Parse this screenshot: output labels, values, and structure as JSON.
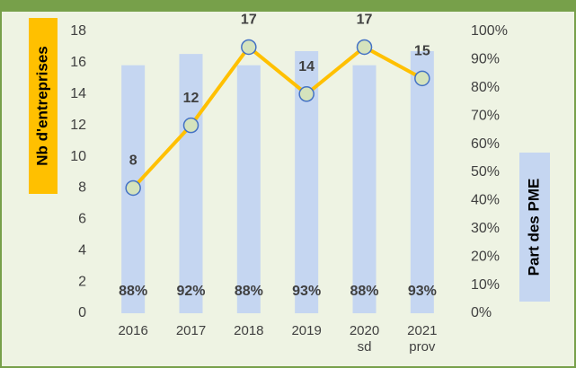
{
  "chart_data": {
    "type": "bar-line",
    "categories": [
      "2016",
      "2017",
      "2018",
      "2019",
      "2020 sd",
      "2021 prov"
    ],
    "series": [
      {
        "name": "Part des PME",
        "type": "bar",
        "axis": "y2",
        "color": "#c5d6f1",
        "values": [
          88,
          92,
          88,
          93,
          88,
          93
        ],
        "value_labels": [
          "88%",
          "92%",
          "88%",
          "93%",
          "88%",
          "93%"
        ]
      },
      {
        "name": "Nb d'entreprises",
        "type": "line",
        "axis": "y",
        "color": "#ffc000",
        "values": [
          8,
          12,
          17,
          14,
          17,
          15
        ]
      }
    ],
    "ylabel": "Nb d'entreprises",
    "y2label": "Part des PME",
    "ylim": [
      0,
      18
    ],
    "yticks": [
      0,
      2,
      4,
      6,
      8,
      10,
      12,
      14,
      16,
      18
    ],
    "y2lim": [
      0,
      100
    ],
    "y2ticks": [
      {
        "value": 0,
        "label": "0%"
      },
      {
        "value": 10,
        "label": "10%"
      },
      {
        "value": 20,
        "label": "20%"
      },
      {
        "value": 30,
        "label": "30%"
      },
      {
        "value": 40,
        "label": "40%"
      },
      {
        "value": 50,
        "label": "50%"
      },
      {
        "value": 60,
        "label": "60%"
      },
      {
        "value": 70,
        "label": "70%"
      },
      {
        "value": 80,
        "label": "80%"
      },
      {
        "value": 90,
        "label": "90%"
      },
      {
        "value": 100,
        "label": "100%"
      }
    ]
  }
}
